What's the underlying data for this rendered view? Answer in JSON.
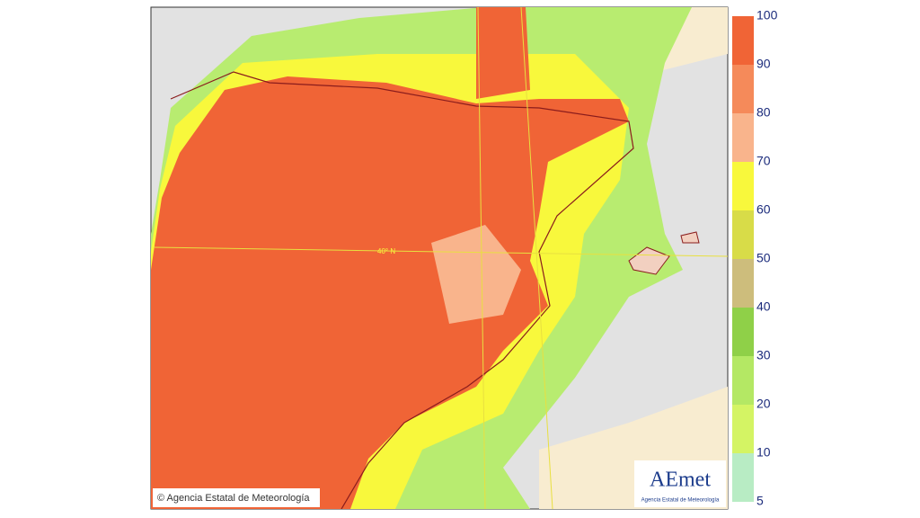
{
  "legend": {
    "labels": [
      100,
      90,
      80,
      70,
      60,
      50,
      40,
      30,
      20,
      10,
      5
    ],
    "colors": [
      "#f06436",
      "#f58a5a",
      "#f9b48c",
      "#f8f83c",
      "#d8dc48",
      "#cdbd7c",
      "#8fd048",
      "#b4e864",
      "#d4f464",
      "#b8ecc4"
    ]
  },
  "map": {
    "latitude_label": "40° N"
  },
  "credits": {
    "copyright": "© Agencia Estatal de Meteorología",
    "logo": "AEmet",
    "logo_subtitle": "Agencia Estatal de Meteorología"
  }
}
